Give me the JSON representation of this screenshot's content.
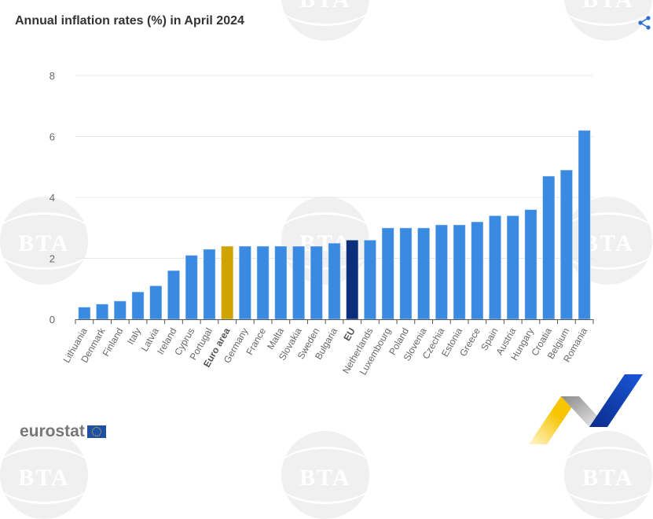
{
  "title": "Annual inflation rates (%) in April 2024",
  "share_icon": "share-icon",
  "source_logo": "eurostat",
  "watermark_text": "BTA",
  "colors": {
    "bar": "#3b8ae2",
    "euro_area": "#cfa402",
    "eu": "#0b2f7a",
    "grid": "#e3e8f0",
    "share": "#2a6fd6"
  },
  "chart_data": {
    "type": "bar",
    "title": "Annual inflation rates (%) in April 2024",
    "xlabel": "",
    "ylabel": "",
    "ylim": [
      0,
      8
    ],
    "yticks": [
      0,
      2,
      4,
      6,
      8
    ],
    "grid": true,
    "legend": "none",
    "categories": [
      "Lithuania",
      "Denmark",
      "Finland",
      "Italy",
      "Latvia",
      "Ireland",
      "Cyprus",
      "Portugal",
      "Euro area",
      "Germany",
      "France",
      "Malta",
      "Slovakia",
      "Sweden",
      "Bulgaria",
      "EU",
      "Netherlands",
      "Luxembourg",
      "Poland",
      "Slovenia",
      "Czechia",
      "Estonia",
      "Greece",
      "Spain",
      "Austria",
      "Hungary",
      "Croatia",
      "Belgium",
      "Romania"
    ],
    "values": [
      0.4,
      0.5,
      0.6,
      0.9,
      1.1,
      1.6,
      2.1,
      2.3,
      2.4,
      2.4,
      2.4,
      2.4,
      2.4,
      2.4,
      2.5,
      2.6,
      2.6,
      3.0,
      3.0,
      3.0,
      3.1,
      3.1,
      3.2,
      3.4,
      3.4,
      3.6,
      4.7,
      4.9,
      6.2
    ],
    "highlight": {
      "Euro area": "euro_area",
      "EU": "eu"
    },
    "bold_labels": [
      "Euro area",
      "EU"
    ]
  }
}
